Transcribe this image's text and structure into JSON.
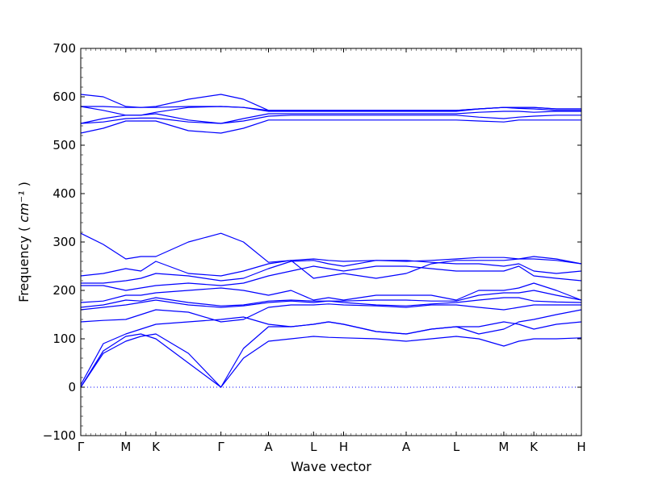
{
  "chart_data": {
    "type": "line",
    "title": "",
    "xlabel": "Wave vector",
    "ylabel": "Frequency",
    "ylabel_unit": "cm⁻¹",
    "ylim": [
      -100,
      700
    ],
    "yticks": [
      -100,
      0,
      100,
      200,
      300,
      400,
      500,
      600,
      700
    ],
    "xticks": [
      {
        "label": "Γ",
        "x": 0.0
      },
      {
        "label": "M",
        "x": 0.9
      },
      {
        "label": "K",
        "x": 1.5
      },
      {
        "label": "Γ",
        "x": 2.8
      },
      {
        "label": "A",
        "x": 3.75
      },
      {
        "label": "L",
        "x": 4.65
      },
      {
        "label": "H",
        "x": 5.25
      },
      {
        "label": "A",
        "x": 6.5
      },
      {
        "label": "L",
        "x": 7.5
      },
      {
        "label": "M",
        "x": 8.45
      },
      {
        "label": "K",
        "x": 9.05
      },
      {
        "label": "H",
        "x": 10.0
      }
    ],
    "xlim": [
      0,
      10
    ],
    "line_color": "#0000ff",
    "zero_line": true,
    "series": [
      {
        "x": [
          0,
          0.45,
          0.9,
          1.2,
          1.5,
          2.15,
          2.8,
          3.25,
          3.75,
          4.2,
          4.65,
          4.95,
          5.25,
          5.9,
          6.5,
          7.0,
          7.5,
          7.95,
          8.45,
          8.75,
          9.05,
          9.5,
          10
        ],
        "values": [
          0,
          70,
          95,
          105,
          110,
          70,
          0,
          60,
          95,
          100,
          105,
          103,
          102,
          100,
          95,
          100,
          105,
          100,
          85,
          95,
          100,
          100,
          102
        ]
      },
      {
        "x": [
          0,
          0.45,
          0.9,
          1.2,
          1.5,
          2.15,
          2.8,
          3.25,
          3.75,
          4.2,
          4.65,
          4.95,
          5.25,
          5.9,
          6.5,
          7.0,
          7.5,
          7.95,
          8.45,
          8.75,
          9.05,
          9.5,
          10
        ],
        "values": [
          0,
          75,
          105,
          110,
          100,
          50,
          0,
          80,
          125,
          125,
          130,
          135,
          130,
          115,
          110,
          120,
          125,
          125,
          135,
          130,
          120,
          130,
          135
        ]
      },
      {
        "x": [
          0,
          0.45,
          0.9,
          1.2,
          1.5,
          2.15,
          2.8,
          3.25,
          3.75,
          4.2,
          4.65,
          4.95,
          5.25,
          5.9,
          6.5,
          7.0,
          7.5,
          7.95,
          8.45,
          8.75,
          9.05,
          9.5,
          10
        ],
        "values": [
          5,
          90,
          110,
          120,
          130,
          135,
          140,
          145,
          130,
          125,
          130,
          135,
          130,
          115,
          110,
          120,
          125,
          110,
          120,
          135,
          140,
          150,
          160
        ]
      },
      {
        "x": [
          0,
          0.45,
          0.9,
          1.2,
          1.5,
          2.15,
          2.8,
          3.25,
          3.75,
          4.2,
          4.65,
          4.95,
          5.25,
          5.9,
          6.5,
          7.0,
          7.5,
          7.95,
          8.45,
          8.75,
          9.05,
          9.5,
          10
        ],
        "values": [
          135,
          138,
          140,
          150,
          160,
          155,
          135,
          140,
          165,
          170,
          170,
          172,
          170,
          168,
          165,
          170,
          170,
          165,
          160,
          165,
          170,
          170,
          170
        ]
      },
      {
        "x": [
          0,
          0.45,
          0.9,
          1.2,
          1.5,
          2.15,
          2.8,
          3.25,
          3.75,
          4.2,
          4.65,
          4.95,
          5.25,
          5.9,
          6.5,
          7.0,
          7.5,
          7.95,
          8.45,
          8.75,
          9.05,
          9.5,
          10
        ],
        "values": [
          160,
          165,
          170,
          175,
          180,
          170,
          165,
          168,
          175,
          178,
          175,
          178,
          175,
          170,
          168,
          172,
          175,
          180,
          185,
          185,
          178,
          176,
          175
        ]
      },
      {
        "x": [
          0,
          0.45,
          0.9,
          1.2,
          1.5,
          2.15,
          2.8,
          3.25,
          3.75,
          4.2,
          4.65,
          4.95,
          5.25,
          5.9,
          6.5,
          7.0,
          7.5,
          7.95,
          8.45,
          8.75,
          9.05,
          9.5,
          10
        ],
        "values": [
          165,
          170,
          180,
          178,
          185,
          175,
          168,
          170,
          178,
          180,
          178,
          178,
          178,
          180,
          180,
          178,
          178,
          190,
          195,
          195,
          200,
          190,
          180
        ]
      },
      {
        "x": [
          0,
          0.45,
          0.9,
          1.2,
          1.5,
          2.15,
          2.8,
          3.25,
          3.75,
          4.2,
          4.65,
          4.95,
          5.25,
          5.9,
          6.5,
          7.0,
          7.5,
          7.95,
          8.45,
          8.75,
          9.05,
          9.5,
          10
        ],
        "values": [
          175,
          178,
          190,
          190,
          195,
          200,
          205,
          200,
          190,
          200,
          180,
          185,
          180,
          190,
          190,
          190,
          180,
          200,
          200,
          205,
          215,
          200,
          180
        ]
      },
      {
        "x": [
          0,
          0.45,
          0.9,
          1.2,
          1.5,
          2.15,
          2.8,
          3.25,
          3.75,
          4.2,
          4.65,
          4.95,
          5.25,
          5.9,
          6.5,
          7.0,
          7.5,
          7.95,
          8.45,
          8.75,
          9.05,
          9.5,
          10
        ],
        "values": [
          210,
          210,
          200,
          205,
          210,
          215,
          210,
          215,
          230,
          240,
          250,
          245,
          240,
          250,
          250,
          245,
          240,
          240,
          240,
          250,
          230,
          225,
          220
        ]
      },
      {
        "x": [
          0,
          0.45,
          0.9,
          1.2,
          1.5,
          2.15,
          2.8,
          3.25,
          3.75,
          4.2,
          4.65,
          4.95,
          5.25,
          5.9,
          6.5,
          7.0,
          7.5,
          7.95,
          8.45,
          8.75,
          9.05,
          9.5,
          10
        ],
        "values": [
          215,
          215,
          220,
          225,
          235,
          230,
          220,
          225,
          245,
          260,
          262,
          255,
          250,
          262,
          262,
          258,
          255,
          255,
          250,
          255,
          240,
          235,
          240
        ]
      },
      {
        "x": [
          0,
          0.45,
          0.9,
          1.2,
          1.5,
          2.15,
          2.8,
          3.25,
          3.75,
          4.2,
          4.65,
          4.95,
          5.25,
          5.9,
          6.5,
          7.0,
          7.5,
          7.95,
          8.45,
          8.75,
          9.05,
          9.5,
          10
        ],
        "values": [
          230,
          235,
          245,
          240,
          260,
          235,
          230,
          240,
          255,
          262,
          225,
          230,
          235,
          225,
          235,
          255,
          262,
          262,
          262,
          265,
          265,
          262,
          255
        ]
      },
      {
        "x": [
          0,
          0.45,
          0.9,
          1.2,
          1.5,
          2.15,
          2.8,
          3.25,
          3.75,
          4.2,
          4.65,
          4.95,
          5.25,
          5.9,
          6.5,
          7.0,
          7.5,
          7.95,
          8.45,
          8.75,
          9.05,
          9.5,
          10
        ],
        "values": [
          318,
          295,
          265,
          270,
          270,
          300,
          318,
          300,
          258,
          262,
          265,
          262,
          260,
          262,
          260,
          262,
          265,
          268,
          268,
          265,
          270,
          265,
          255
        ]
      },
      {
        "x": [
          0,
          0.45,
          0.9,
          1.2,
          1.5,
          2.15,
          2.8,
          3.25,
          3.75,
          4.2,
          4.65,
          4.95,
          5.25,
          5.9,
          6.5,
          7.0,
          7.5,
          7.95,
          8.45,
          8.75,
          9.05,
          9.5,
          10
        ],
        "values": [
          525,
          535,
          550,
          550,
          550,
          530,
          525,
          535,
          552,
          552,
          552,
          552,
          552,
          552,
          552,
          552,
          552,
          550,
          548,
          552,
          552,
          552,
          552
        ]
      },
      {
        "x": [
          0,
          0.45,
          0.9,
          1.2,
          1.5,
          2.15,
          2.8,
          3.25,
          3.75,
          4.2,
          4.65,
          4.95,
          5.25,
          5.9,
          6.5,
          7.0,
          7.5,
          7.95,
          8.45,
          8.75,
          9.05,
          9.5,
          10
        ],
        "values": [
          545,
          548,
          555,
          556,
          556,
          548,
          545,
          550,
          560,
          562,
          562,
          562,
          562,
          562,
          562,
          562,
          562,
          558,
          555,
          558,
          560,
          562,
          562
        ]
      },
      {
        "x": [
          0,
          0.45,
          0.9,
          1.2,
          1.5,
          2.15,
          2.8,
          3.25,
          3.75,
          4.2,
          4.65,
          4.95,
          5.25,
          5.9,
          6.5,
          7.0,
          7.5,
          7.95,
          8.45,
          8.75,
          9.05,
          9.5,
          10
        ],
        "values": [
          545,
          555,
          562,
          562,
          565,
          552,
          545,
          555,
          565,
          565,
          565,
          565,
          565,
          565,
          565,
          565,
          565,
          568,
          570,
          570,
          568,
          570,
          570
        ]
      },
      {
        "x": [
          0,
          0.45,
          0.9,
          1.2,
          1.5,
          2.15,
          2.8,
          3.25,
          3.75,
          4.2,
          4.65,
          4.95,
          5.25,
          5.9,
          6.5,
          7.0,
          7.5,
          7.95,
          8.45,
          8.75,
          9.05,
          9.5,
          10
        ],
        "values": [
          580,
          572,
          562,
          562,
          568,
          578,
          580,
          578,
          570,
          570,
          570,
          570,
          570,
          570,
          570,
          570,
          570,
          575,
          578,
          576,
          575,
          572,
          572
        ]
      },
      {
        "x": [
          0,
          0.45,
          0.9,
          1.2,
          1.5,
          2.15,
          2.8,
          3.25,
          3.75,
          4.2,
          4.65,
          4.95,
          5.25,
          5.9,
          6.5,
          7.0,
          7.5,
          7.95,
          8.45,
          8.75,
          9.05,
          9.5,
          10
        ],
        "values": [
          580,
          580,
          578,
          578,
          578,
          580,
          580,
          578,
          572,
          572,
          572,
          572,
          572,
          572,
          572,
          572,
          572,
          575,
          578,
          578,
          578,
          575,
          575
        ]
      },
      {
        "x": [
          0,
          0.45,
          0.9,
          1.2,
          1.5,
          2.15,
          2.8,
          3.25,
          3.75,
          4.2,
          4.65,
          4.95,
          5.25,
          5.9,
          6.5,
          7.0,
          7.5,
          7.95,
          8.45,
          8.75,
          9.05,
          9.5,
          10
        ],
        "values": [
          605,
          600,
          580,
          578,
          580,
          595,
          605,
          595,
          572,
          572,
          572,
          572,
          572,
          572,
          572,
          572,
          572,
          575,
          578,
          578,
          578,
          575,
          575
        ]
      }
    ]
  }
}
